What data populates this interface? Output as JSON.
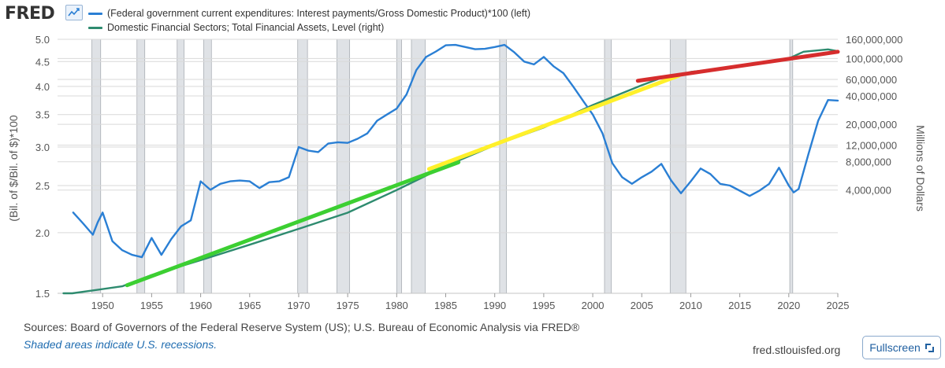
{
  "header": {
    "logo_text": "FRED",
    "logo_icon": "line-chart-icon",
    "legend": [
      {
        "label": "(Federal government current expenditures: Interest payments/Gross Domestic Product)*100 (left)",
        "color": "#2a7fd4"
      },
      {
        "label": "Domestic Financial Sectors; Total Financial Assets, Level (right)",
        "color": "#2e8b6f"
      }
    ]
  },
  "chart_data": {
    "type": "line",
    "log_scale": true,
    "grid": true,
    "xlabel": "",
    "x_ticks": [
      1950,
      1955,
      1960,
      1965,
      1970,
      1975,
      1980,
      1985,
      1990,
      1995,
      2000,
      2005,
      2010,
      2015,
      2020,
      2025
    ],
    "xlim": [
      1945.4,
      2025
    ],
    "y_left": {
      "label": "(Bil. of $/Bil. of $)*100",
      "ticks": [
        1.5,
        2.0,
        2.5,
        3.0,
        3.5,
        4.0,
        4.5,
        5.0
      ],
      "tick_labels": [
        "1.5",
        "2.0",
        "2.5",
        "3.0",
        "3.5",
        "4.0",
        "4.5",
        "5.0"
      ],
      "lim": [
        1.5,
        5.0
      ]
    },
    "y_right": {
      "label": "Millions of Dollars",
      "ticks": [
        4000000,
        8000000,
        12000000,
        20000000,
        40000000,
        60000000,
        100000000,
        160000000
      ],
      "tick_labels": [
        "4,000,000",
        "8,000,000",
        "12,000,000",
        "20,000,000",
        "40,000,000",
        "60,000,000",
        "100,000,000",
        "160,000,000"
      ],
      "lim": [
        320000,
        160000000
      ]
    },
    "recessions": [
      [
        1948.9,
        1949.8
      ],
      [
        1953.5,
        1954.3
      ],
      [
        1957.6,
        1958.3
      ],
      [
        1960.3,
        1961.1
      ],
      [
        1969.9,
        1970.9
      ],
      [
        1973.9,
        1975.2
      ],
      [
        1980.0,
        1980.5
      ],
      [
        1981.5,
        1982.9
      ],
      [
        1990.5,
        1991.2
      ],
      [
        2001.2,
        2001.9
      ],
      [
        2007.9,
        2009.5
      ],
      [
        2020.1,
        2020.4
      ]
    ],
    "series": [
      {
        "name": "(Federal government current expenditures: Interest payments/Gross Domestic Product)*100 (left)",
        "axis": "left",
        "color": "#2a7fd4",
        "x": [
          1947.0,
          1948.0,
          1949.0,
          1949.5,
          1950.0,
          1951.0,
          1952.0,
          1953.0,
          1954.0,
          1955.0,
          1956.0,
          1957.0,
          1958.0,
          1959.0,
          1960.0,
          1961.0,
          1962.0,
          1963.0,
          1964.0,
          1965.0,
          1966.0,
          1967.0,
          1968.0,
          1969.0,
          1970.0,
          1971.0,
          1972.0,
          1973.0,
          1974.0,
          1975.0,
          1976.0,
          1977.0,
          1978.0,
          1979.0,
          1980.0,
          1981.0,
          1982.0,
          1983.0,
          1984.0,
          1985.0,
          1986.0,
          1987.0,
          1988.0,
          1989.0,
          1990.0,
          1991.0,
          1992.0,
          1993.0,
          1994.0,
          1995.0,
          1996.0,
          1997.0,
          1998.0,
          1999.0,
          2000.0,
          2001.0,
          2002.0,
          2003.0,
          2004.0,
          2005.0,
          2006.0,
          2007.0,
          2008.0,
          2009.0,
          2010.0,
          2011.0,
          2012.0,
          2013.0,
          2014.0,
          2015.0,
          2016.0,
          2017.0,
          2018.0,
          2019.0,
          2020.0,
          2020.5,
          2021.0,
          2022.0,
          2023.0,
          2024.0,
          2025.0
        ],
        "y": [
          2.2,
          2.09,
          1.98,
          2.1,
          2.2,
          1.92,
          1.84,
          1.8,
          1.78,
          1.95,
          1.8,
          1.94,
          2.06,
          2.12,
          2.55,
          2.45,
          2.52,
          2.55,
          2.56,
          2.55,
          2.47,
          2.54,
          2.55,
          2.6,
          3.0,
          2.95,
          2.93,
          3.05,
          3.07,
          3.06,
          3.12,
          3.2,
          3.4,
          3.5,
          3.6,
          3.85,
          4.32,
          4.6,
          4.72,
          4.86,
          4.87,
          4.82,
          4.77,
          4.78,
          4.82,
          4.87,
          4.7,
          4.5,
          4.44,
          4.6,
          4.4,
          4.26,
          4.0,
          3.74,
          3.5,
          3.2,
          2.78,
          2.6,
          2.52,
          2.6,
          2.67,
          2.77,
          2.56,
          2.41,
          2.55,
          2.71,
          2.64,
          2.52,
          2.5,
          2.44,
          2.38,
          2.44,
          2.52,
          2.72,
          2.5,
          2.42,
          2.46,
          2.9,
          3.4,
          3.75,
          3.74
        ]
      },
      {
        "name": "Domestic Financial Sectors; Total Financial Assets, Level (right)",
        "axis": "right",
        "color": "#2e8b6f",
        "x": [
          1946.0,
          1946.9,
          1952.0,
          1955.0,
          1960.0,
          1965.0,
          1970.0,
          1975.0,
          1980.0,
          1985.0,
          1990.0,
          1995.0,
          2000.0,
          2005.0,
          2007.5,
          2009.0,
          2010.0,
          2015.0,
          2020.0,
          2021.5,
          2024.0,
          2025.0
        ],
        "y": [
          320000,
          320000,
          380000,
          500000,
          720000,
          1050000,
          1550000,
          2300000,
          4000000,
          7200000,
          12000000,
          18500000,
          32000000,
          52000000,
          65000000,
          68000000,
          72000000,
          82000000,
          100000000,
          118000000,
          125000000,
          120000000
        ]
      }
    ],
    "trend_lines": [
      {
        "color": "#3ccf32",
        "x": [
          1952.5,
          1986.3
        ],
        "y": [
          390000,
          7900000
        ]
      },
      {
        "color": "#fff02a",
        "x": [
          1983.3,
          2008.8
        ],
        "y": [
          6700000,
          66000000
        ]
      },
      {
        "color": "#d62d2d",
        "x": [
          2004.6,
          2025.0
        ],
        "y": [
          58000000,
          118000000
        ]
      }
    ]
  },
  "footer": {
    "sources": "Sources: Board of Governors of the Federal Reserve System (US); U.S. Bureau of Economic Analysis via FRED®",
    "shaded_note": "Shaded areas indicate U.S. recessions.",
    "site": "fred.stlouisfed.org",
    "fullscreen_label": "Fullscreen",
    "fullscreen_icon": "expand-icon"
  }
}
